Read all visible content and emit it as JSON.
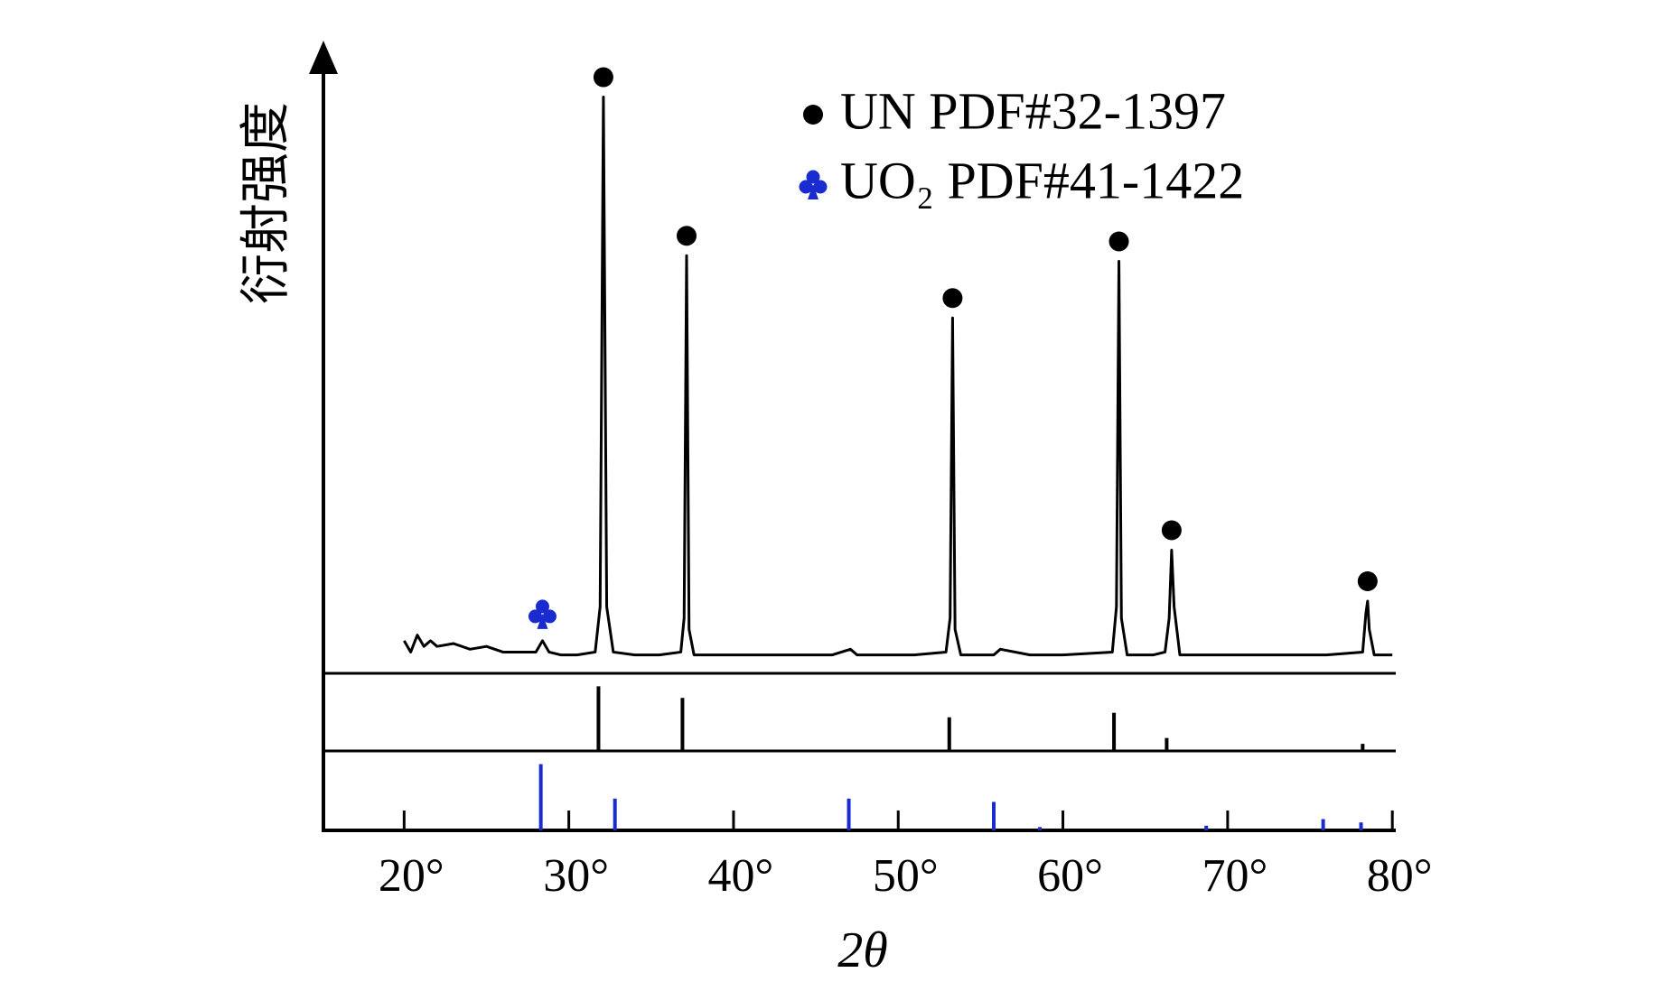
{
  "chart_data": [
    {
      "type": "line",
      "ylabel": "衍射强度",
      "xlim": [
        15.1,
        80.1
      ],
      "ylim": [
        0,
        102
      ],
      "x": [
        20,
        20.4,
        20.8,
        21.2,
        21.6,
        22,
        23,
        24,
        25,
        26,
        27,
        28,
        28.4,
        28.8,
        29.5,
        30.5,
        31.6,
        31.9,
        32.1,
        32.3,
        32.7,
        34,
        35.5,
        36.8,
        37.0,
        37.15,
        37.3,
        37.6,
        40,
        43,
        46,
        47.1,
        47.5,
        49,
        51,
        52.9,
        53.15,
        53.3,
        53.45,
        53.8,
        55.8,
        56.2,
        58,
        60,
        63.0,
        63.25,
        63.4,
        63.55,
        63.9,
        65.5,
        66.2,
        66.45,
        66.6,
        66.75,
        67.1,
        70,
        73,
        76,
        78.2,
        78.4,
        78.5,
        78.6,
        78.9,
        80
      ],
      "values": [
        4,
        2,
        5,
        3,
        4,
        3,
        3.5,
        2.5,
        3,
        2,
        2,
        2,
        4,
        2,
        1.5,
        1.5,
        2,
        10,
        100,
        10,
        2,
        1.5,
        1.5,
        2,
        8,
        72,
        6,
        1.5,
        1.5,
        1.5,
        1.5,
        2.5,
        1.5,
        1.5,
        1.5,
        2,
        8,
        61,
        6,
        1.5,
        1.5,
        2.5,
        1.5,
        1.5,
        2,
        10,
        71,
        8,
        1.5,
        1.5,
        2,
        8,
        20,
        10,
        1.5,
        1.5,
        1.5,
        1.5,
        2,
        9,
        11,
        6,
        1.5,
        1.5
      ],
      "color": "#000000",
      "markers": [
        {
          "name": "UN PDF#32-1397",
          "color": "#000000",
          "symbol": "dot",
          "x": [
            32.1,
            37.15,
            53.3,
            63.4,
            66.6,
            78.5
          ],
          "y": [
            100,
            72,
            61,
            71,
            20,
            11
          ]
        },
        {
          "name": "UO₂ PDF#41-1422",
          "color": "#1a2bd0",
          "symbol": "club",
          "x": [
            28.4
          ],
          "y": [
            4
          ]
        }
      ]
    },
    {
      "type": "stem",
      "xlim": [
        15.1,
        80.1
      ],
      "ylim": [
        0,
        120
      ],
      "color": "#000000",
      "x": [
        31.8,
        36.9,
        53.1,
        63.1,
        66.3,
        78.2
      ],
      "values": [
        100,
        82,
        52,
        59,
        20,
        11
      ]
    },
    {
      "type": "stem",
      "xlim": [
        15.1,
        80.1
      ],
      "ylim": [
        0,
        120
      ],
      "color": "#1a2bd0",
      "x": [
        28.3,
        32.8,
        47.0,
        55.8,
        58.6,
        68.7,
        75.8,
        78.1
      ],
      "values": [
        100,
        48,
        48,
        43,
        5,
        7,
        17,
        12
      ],
      "xlabel": "2θ",
      "xticks": [
        {
          "value": 20,
          "label": "20°"
        },
        {
          "value": 30,
          "label": "30°"
        },
        {
          "value": 40,
          "label": "40°"
        },
        {
          "value": 50,
          "label": "50°"
        },
        {
          "value": 60,
          "label": "60°"
        },
        {
          "value": 70,
          "label": "70°"
        },
        {
          "value": 80,
          "label": "80°"
        }
      ]
    }
  ]
}
